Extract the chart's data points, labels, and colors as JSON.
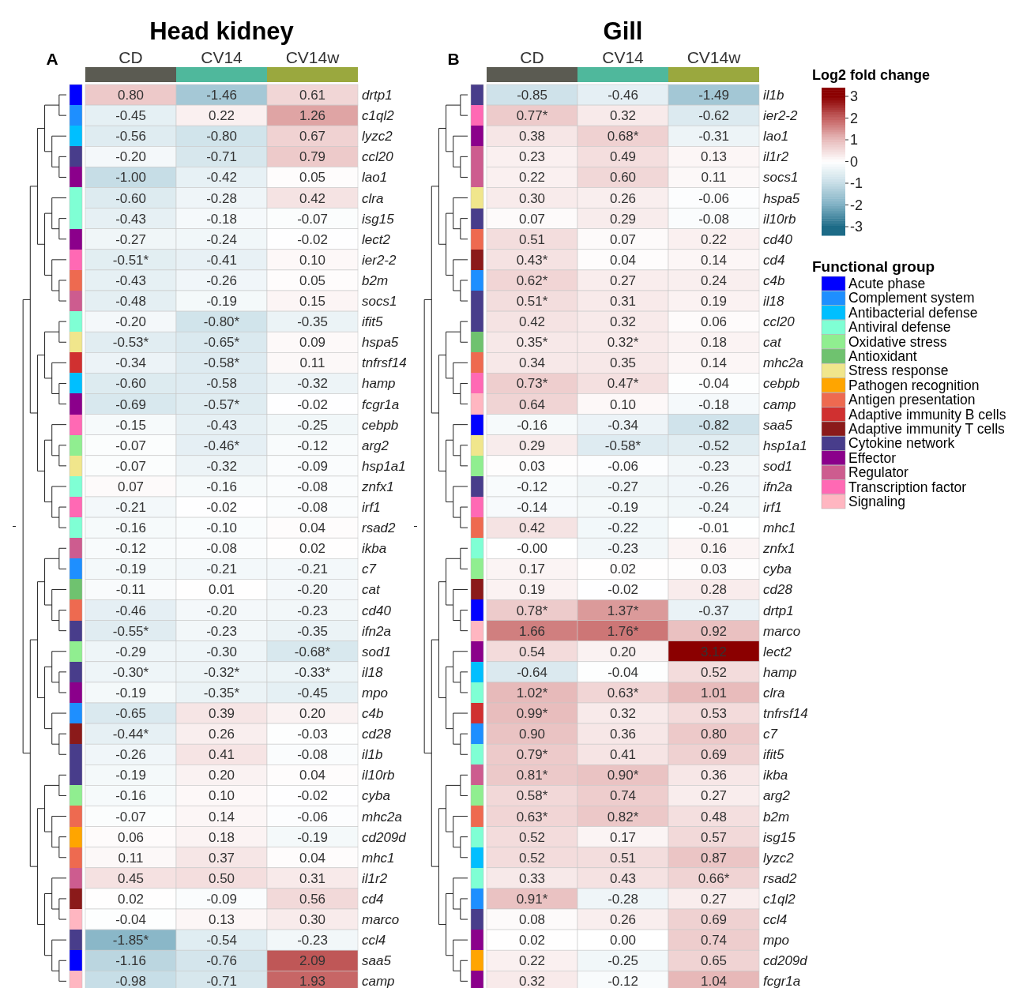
{
  "chart_data": [
    {
      "type": "heatmap",
      "title": "Head kidney",
      "annotations": [
        "A"
      ],
      "categories": [
        "CD",
        "CV14",
        "CV14w"
      ],
      "y_categories": [
        "drtp1",
        "c1ql2",
        "lyzc2",
        "ccl20",
        "lao1",
        "clra",
        "isg15",
        "lect2",
        "ier2-2",
        "b2m",
        "socs1",
        "ifit5",
        "hspa5",
        "tnfrsf14",
        "hamp",
        "fcgr1a",
        "cebpb",
        "arg2",
        "hsp1a1",
        "znfx1",
        "irf1",
        "rsad2",
        "ikba",
        "c7",
        "cat",
        "cd40",
        "ifn2a",
        "sod1",
        "il18",
        "mpo",
        "c4b",
        "cd28",
        "il1b",
        "il10rb",
        "cyba",
        "mhc2a",
        "cd209d",
        "mhc1",
        "il1r2",
        "cd4",
        "marco",
        "ccl4",
        "saa5",
        "camp"
      ],
      "colors": [
        "#0000ff",
        "#1e8fff",
        "#00bfff",
        "#483d8b",
        "#8b008b",
        "#7fffd4",
        "#7fffd4",
        "#8b008b",
        "#ff69b4",
        "#ee6a50",
        "#cd5c8f",
        "#7fffd4",
        "#f0e68c",
        "#d03030",
        "#00bfff",
        "#8b008b",
        "#ff69b4",
        "#90ee90",
        "#f0e68c",
        "#7fffd4",
        "#ff69b4",
        "#7fffd4",
        "#cd5c8f",
        "#1e8fff",
        "#6fc26f",
        "#ee6a50",
        "#483d8b",
        "#90ee90",
        "#483d8b",
        "#8b008b",
        "#1e8fff",
        "#8b1a1a",
        "#483d8b",
        "#483d8b",
        "#90ee90",
        "#ee6a50",
        "#ffa500",
        "#ee6a50",
        "#cd5c8f",
        "#8b1a1a",
        "#ffb6c1",
        "#483d8b",
        "#0000ff",
        "#ffb6c1"
      ],
      "cells": [
        [
          0.8,
          -1.46,
          0.61
        ],
        [
          -0.45,
          0.22,
          1.26
        ],
        [
          -0.56,
          -0.8,
          0.67
        ],
        [
          -0.2,
          -0.71,
          0.79
        ],
        [
          -1.0,
          -0.42,
          0.05
        ],
        [
          -0.6,
          -0.28,
          0.42
        ],
        [
          -0.43,
          -0.18,
          -0.07
        ],
        [
          -0.27,
          -0.24,
          -0.02
        ],
        [
          -0.51,
          -0.41,
          0.1
        ],
        [
          -0.43,
          -0.26,
          0.05
        ],
        [
          -0.48,
          -0.19,
          0.15
        ],
        [
          -0.2,
          -0.8,
          -0.35
        ],
        [
          -0.53,
          -0.65,
          0.09
        ],
        [
          -0.34,
          -0.58,
          0.11
        ],
        [
          -0.6,
          -0.58,
          -0.32
        ],
        [
          -0.69,
          -0.57,
          -0.02
        ],
        [
          -0.15,
          -0.43,
          -0.25
        ],
        [
          -0.07,
          -0.46,
          -0.12
        ],
        [
          -0.07,
          -0.32,
          -0.09
        ],
        [
          0.07,
          -0.16,
          -0.08
        ],
        [
          -0.21,
          -0.02,
          -0.08
        ],
        [
          -0.16,
          -0.1,
          0.04
        ],
        [
          -0.12,
          -0.08,
          0.02
        ],
        [
          -0.19,
          -0.21,
          -0.21
        ],
        [
          -0.11,
          0.01,
          -0.2
        ],
        [
          -0.46,
          -0.2,
          -0.23
        ],
        [
          -0.55,
          -0.23,
          -0.35
        ],
        [
          -0.29,
          -0.3,
          -0.68
        ],
        [
          -0.3,
          -0.32,
          -0.33
        ],
        [
          -0.19,
          -0.35,
          -0.45
        ],
        [
          -0.65,
          0.39,
          0.2
        ],
        [
          -0.44,
          0.26,
          -0.03
        ],
        [
          -0.26,
          0.41,
          -0.08
        ],
        [
          -0.19,
          0.2,
          0.04
        ],
        [
          -0.16,
          0.1,
          -0.02
        ],
        [
          -0.07,
          0.14,
          -0.06
        ],
        [
          0.06,
          0.18,
          -0.19
        ],
        [
          0.11,
          0.37,
          0.04
        ],
        [
          0.45,
          0.5,
          0.31
        ],
        [
          0.02,
          -0.09,
          0.56
        ],
        [
          -0.04,
          0.13,
          0.3
        ],
        [
          -1.85,
          -0.54,
          -0.23
        ],
        [
          -1.16,
          -0.76,
          2.09
        ],
        [
          -0.98,
          -0.71,
          1.93
        ]
      ],
      "cell_labels": [
        [
          "0.80",
          "-1.46",
          "0.61"
        ],
        [
          "-0.45",
          "0.22",
          "1.26"
        ],
        [
          "-0.56",
          "-0.80",
          "0.67"
        ],
        [
          "-0.20",
          "-0.71",
          "0.79"
        ],
        [
          "-1.00",
          "-0.42",
          "0.05"
        ],
        [
          "-0.60",
          "-0.28",
          "0.42"
        ],
        [
          "-0.43",
          "-0.18",
          "-0.07"
        ],
        [
          "-0.27",
          "-0.24",
          "-0.02"
        ],
        [
          "-0.51*",
          "-0.41",
          "0.10"
        ],
        [
          "-0.43",
          "-0.26",
          "0.05"
        ],
        [
          "-0.48",
          "-0.19",
          "0.15"
        ],
        [
          "-0.20",
          "-0.80*",
          "-0.35"
        ],
        [
          "-0.53*",
          "-0.65*",
          "0.09"
        ],
        [
          "-0.34",
          "-0.58*",
          "0.11"
        ],
        [
          "-0.60",
          "-0.58",
          "-0.32"
        ],
        [
          "-0.69",
          "-0.57*",
          "-0.02"
        ],
        [
          "-0.15",
          "-0.43",
          "-0.25"
        ],
        [
          "-0.07",
          "-0.46*",
          "-0.12"
        ],
        [
          "-0.07",
          "-0.32",
          "-0.09"
        ],
        [
          "0.07",
          "-0.16",
          "-0.08"
        ],
        [
          "-0.21",
          "-0.02",
          "-0.08"
        ],
        [
          "-0.16",
          "-0.10",
          "0.04"
        ],
        [
          "-0.12",
          "-0.08",
          "0.02"
        ],
        [
          "-0.19",
          "-0.21",
          "-0.21"
        ],
        [
          "-0.11",
          "0.01",
          "-0.20"
        ],
        [
          "-0.46",
          "-0.20",
          "-0.23"
        ],
        [
          "-0.55*",
          "-0.23",
          "-0.35"
        ],
        [
          "-0.29",
          "-0.30",
          "-0.68*"
        ],
        [
          "-0.30*",
          "-0.32*",
          "-0.33*"
        ],
        [
          "-0.19",
          "-0.35*",
          "-0.45"
        ],
        [
          "-0.65",
          "0.39",
          "0.20"
        ],
        [
          "-0.44*",
          "0.26",
          "-0.03"
        ],
        [
          "-0.26",
          "0.41",
          "-0.08"
        ],
        [
          "-0.19",
          "0.20",
          "0.04"
        ],
        [
          "-0.16",
          "0.10",
          "-0.02"
        ],
        [
          "-0.07",
          "0.14",
          "-0.06"
        ],
        [
          "0.06",
          "0.18",
          "-0.19"
        ],
        [
          "0.11",
          "0.37",
          "0.04"
        ],
        [
          "0.45",
          "0.50",
          "0.31"
        ],
        [
          "0.02",
          "-0.09",
          "0.56"
        ],
        [
          "-0.04",
          "0.13",
          "0.30"
        ],
        [
          "-1.85*",
          "-0.54",
          "-0.23"
        ],
        [
          "-1.16",
          "-0.76",
          "2.09"
        ],
        [
          "-0.98",
          "-0.71",
          "1.93"
        ]
      ]
    },
    {
      "type": "heatmap",
      "title": "Gill",
      "annotations": [
        "B"
      ],
      "categories": [
        "CD",
        "CV14",
        "CV14w"
      ],
      "y_categories": [
        "il1b",
        "ier2-2",
        "lao1",
        "il1r2",
        "socs1",
        "hspa5",
        "il10rb",
        "cd40",
        "cd4",
        "c4b",
        "il18",
        "ccl20",
        "cat",
        "mhc2a",
        "cebpb",
        "camp",
        "saa5",
        "hsp1a1",
        "sod1",
        "ifn2a",
        "irf1",
        "mhc1",
        "znfx1",
        "cyba",
        "cd28",
        "drtp1",
        "marco",
        "lect2",
        "hamp",
        "clra",
        "tnfrsf14",
        "c7",
        "ifit5",
        "ikba",
        "arg2",
        "b2m",
        "isg15",
        "lyzc2",
        "rsad2",
        "c1ql2",
        "ccl4",
        "mpo",
        "cd209d",
        "fcgr1a"
      ],
      "colors": [
        "#483d8b",
        "#ff69b4",
        "#8b008b",
        "#cd5c8f",
        "#cd5c8f",
        "#f0e68c",
        "#483d8b",
        "#ee6a50",
        "#8b1a1a",
        "#1e8fff",
        "#483d8b",
        "#483d8b",
        "#6fc26f",
        "#ee6a50",
        "#ff69b4",
        "#ffb6c1",
        "#0000ff",
        "#f0e68c",
        "#90ee90",
        "#483d8b",
        "#ff69b4",
        "#ee6a50",
        "#7fffd4",
        "#90ee90",
        "#8b1a1a",
        "#0000ff",
        "#ffb6c1",
        "#8b008b",
        "#00bfff",
        "#7fffd4",
        "#d03030",
        "#1e8fff",
        "#7fffd4",
        "#cd5c8f",
        "#90ee90",
        "#ee6a50",
        "#7fffd4",
        "#00bfff",
        "#7fffd4",
        "#1e8fff",
        "#483d8b",
        "#8b008b",
        "#ffa500",
        "#8b008b"
      ],
      "cells": [
        [
          -0.85,
          -0.46,
          -1.49
        ],
        [
          0.77,
          0.32,
          -0.62
        ],
        [
          0.38,
          0.68,
          -0.31
        ],
        [
          0.23,
          0.49,
          0.13
        ],
        [
          0.22,
          0.6,
          0.11
        ],
        [
          0.3,
          0.26,
          -0.06
        ],
        [
          0.07,
          0.29,
          -0.08
        ],
        [
          0.51,
          0.07,
          0.22
        ],
        [
          0.43,
          0.04,
          0.14
        ],
        [
          0.62,
          0.27,
          0.24
        ],
        [
          0.51,
          0.31,
          0.19
        ],
        [
          0.42,
          0.32,
          0.06
        ],
        [
          0.35,
          0.32,
          0.18
        ],
        [
          0.34,
          0.35,
          0.14
        ],
        [
          0.73,
          0.47,
          -0.04
        ],
        [
          0.64,
          0.1,
          -0.18
        ],
        [
          -0.16,
          -0.34,
          -0.82
        ],
        [
          0.29,
          -0.58,
          -0.52
        ],
        [
          0.03,
          -0.06,
          -0.23
        ],
        [
          -0.12,
          -0.27,
          -0.26
        ],
        [
          -0.14,
          -0.19,
          -0.24
        ],
        [
          0.42,
          -0.22,
          -0.01
        ],
        [
          0.0,
          -0.23,
          0.16
        ],
        [
          0.17,
          0.02,
          0.03
        ],
        [
          0.19,
          -0.02,
          0.28
        ],
        [
          0.78,
          1.37,
          -0.37
        ],
        [
          1.66,
          1.76,
          0.92
        ],
        [
          0.54,
          0.2,
          3.12
        ],
        [
          -0.64,
          -0.04,
          0.52
        ],
        [
          1.02,
          0.63,
          1.01
        ],
        [
          0.99,
          0.32,
          0.53
        ],
        [
          0.9,
          0.36,
          0.8
        ],
        [
          0.79,
          0.41,
          0.69
        ],
        [
          0.81,
          0.9,
          0.36
        ],
        [
          0.58,
          0.74,
          0.27
        ],
        [
          0.63,
          0.82,
          0.48
        ],
        [
          0.52,
          0.17,
          0.57
        ],
        [
          0.52,
          0.51,
          0.87
        ],
        [
          0.33,
          0.43,
          0.66
        ],
        [
          0.91,
          -0.28,
          0.27
        ],
        [
          0.08,
          0.26,
          0.69
        ],
        [
          0.02,
          0.0,
          0.74
        ],
        [
          0.22,
          -0.25,
          0.65
        ],
        [
          0.32,
          -0.12,
          1.04
        ]
      ],
      "cell_labels": [
        [
          "-0.85",
          "-0.46",
          "-1.49"
        ],
        [
          "0.77*",
          "0.32",
          "-0.62"
        ],
        [
          "0.38",
          "0.68*",
          "-0.31"
        ],
        [
          "0.23",
          "0.49",
          "0.13"
        ],
        [
          "0.22",
          "0.60",
          "0.11"
        ],
        [
          "0.30",
          "0.26",
          "-0.06"
        ],
        [
          "0.07",
          "0.29",
          "-0.08"
        ],
        [
          "0.51",
          "0.07",
          "0.22"
        ],
        [
          "0.43*",
          "0.04",
          "0.14"
        ],
        [
          "0.62*",
          "0.27",
          "0.24"
        ],
        [
          "0.51*",
          "0.31",
          "0.19"
        ],
        [
          "0.42",
          "0.32",
          "0.06"
        ],
        [
          "0.35*",
          "0.32*",
          "0.18"
        ],
        [
          "0.34",
          "0.35",
          "0.14"
        ],
        [
          "0.73*",
          "0.47*",
          "-0.04"
        ],
        [
          "0.64",
          "0.10",
          "-0.18"
        ],
        [
          "-0.16",
          "-0.34",
          "-0.82"
        ],
        [
          "0.29",
          "-0.58*",
          "-0.52"
        ],
        [
          "0.03",
          "-0.06",
          "-0.23"
        ],
        [
          "-0.12",
          "-0.27",
          "-0.26"
        ],
        [
          "-0.14",
          "-0.19",
          "-0.24"
        ],
        [
          "0.42",
          "-0.22",
          "-0.01"
        ],
        [
          "-0.00",
          "-0.23",
          "0.16"
        ],
        [
          "0.17",
          "0.02",
          "0.03"
        ],
        [
          "0.19",
          "-0.02",
          "0.28"
        ],
        [
          "0.78*",
          "1.37*",
          "-0.37"
        ],
        [
          "1.66",
          "1.76*",
          "0.92"
        ],
        [
          "0.54",
          "0.20",
          "3.12"
        ],
        [
          "-0.64",
          "-0.04",
          "0.52"
        ],
        [
          "1.02*",
          "0.63*",
          "1.01"
        ],
        [
          "0.99*",
          "0.32",
          "0.53"
        ],
        [
          "0.90",
          "0.36",
          "0.80"
        ],
        [
          "0.79*",
          "0.41",
          "0.69"
        ],
        [
          "0.81*",
          "0.90*",
          "0.36"
        ],
        [
          "0.58*",
          "0.74",
          "0.27"
        ],
        [
          "0.63*",
          "0.82*",
          "0.48"
        ],
        [
          "0.52",
          "0.17",
          "0.57"
        ],
        [
          "0.52",
          "0.51",
          "0.87"
        ],
        [
          "0.33",
          "0.43",
          "0.66*"
        ],
        [
          "0.91*",
          "-0.28",
          "0.27"
        ],
        [
          "0.08",
          "0.26",
          "0.69"
        ],
        [
          "0.02",
          "0.00",
          "0.74"
        ],
        [
          "0.22",
          "-0.25",
          "0.65"
        ],
        [
          "0.32",
          "-0.12",
          "1.04"
        ]
      ],
      "clabel": "Log2 fold change",
      "clim": [
        -3.4,
        3.4
      ],
      "cticks": [
        3,
        2,
        1,
        0,
        -1,
        -2,
        -3
      ]
    },
    {
      "type": "other",
      "title": "Functional group",
      "categories": [
        "Acute phase",
        "Complement system",
        "Antibacterial defense",
        "Antiviral defense",
        "Oxidative stress",
        "Antioxidant",
        "Stress response",
        "Pathogen recognition",
        "Antigen presentation",
        "Adaptive immunity B cells",
        "Adaptive immunity T cells",
        "Cytokine network",
        "Effector",
        "Regulator",
        "Transcription factor",
        "Signaling"
      ],
      "colors": [
        "#0000ff",
        "#1e8fff",
        "#00bfff",
        "#7fffd4",
        "#90ee90",
        "#6fc26f",
        "#f0e68c",
        "#ffa500",
        "#ee6a50",
        "#d03030",
        "#8b1a1a",
        "#483d8b",
        "#8b008b",
        "#cd5c8f",
        "#ff69b4",
        "#ffb6c1"
      ]
    }
  ]
}
